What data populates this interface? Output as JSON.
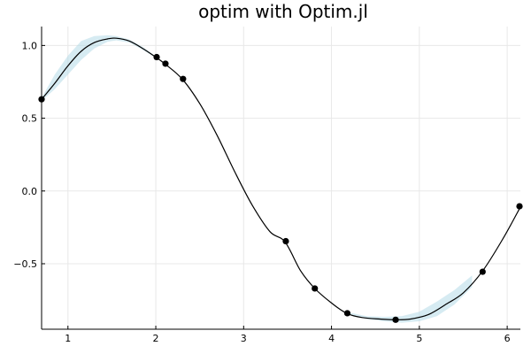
{
  "chart_data": {
    "type": "line",
    "title": "optim with Optim.jl",
    "xlabel": "",
    "ylabel": "",
    "xlim": [
      0.7,
      6.15
    ],
    "ylim": [
      -0.95,
      1.13
    ],
    "grid": true,
    "legend": "none",
    "xticks": [
      1,
      2,
      3,
      4,
      5,
      6
    ],
    "yticks": [
      -0.5,
      0.0,
      0.5,
      1.0
    ],
    "xtick_labels": [
      "1",
      "2",
      "3",
      "4",
      "5",
      "6"
    ],
    "ytick_labels": [
      "−0.5",
      "0.0",
      "0.5",
      "1.0"
    ],
    "colors": {
      "line": "#000000",
      "points": "#000000",
      "ribbon": "#add8e6",
      "grid": "#e8e8e8"
    },
    "series": [
      {
        "type": "line",
        "x": [
          0.7,
          0.85,
          1.0,
          1.15,
          1.3,
          1.45,
          1.55,
          1.7,
          1.85,
          2.0,
          2.1,
          2.3,
          2.5,
          2.7,
          2.9,
          3.1,
          3.3,
          3.47,
          3.65,
          3.81,
          4.0,
          4.17,
          4.35,
          4.55,
          4.73,
          4.9,
          5.1,
          5.3,
          5.5,
          5.72,
          5.95,
          6.15
        ],
        "values": [
          0.63,
          0.74,
          0.86,
          0.96,
          1.02,
          1.045,
          1.05,
          1.03,
          0.98,
          0.92,
          0.875,
          0.77,
          0.6,
          0.38,
          0.13,
          -0.1,
          -0.28,
          -0.35,
          -0.55,
          -0.67,
          -0.77,
          -0.84,
          -0.87,
          -0.88,
          -0.885,
          -0.88,
          -0.85,
          -0.78,
          -0.7,
          -0.55,
          -0.33,
          -0.11
        ]
      },
      {
        "type": "scatter",
        "x": [
          0.7,
          2.01,
          2.11,
          2.31,
          3.48,
          3.81,
          4.18,
          4.73,
          5.72,
          6.14
        ],
        "values": [
          0.63,
          0.92,
          0.875,
          0.77,
          -0.345,
          -0.67,
          -0.84,
          -0.885,
          -0.555,
          -0.105
        ]
      }
    ],
    "ribbon": {
      "x": [
        0.7,
        0.85,
        1.0,
        1.15,
        1.3,
        1.45,
        1.55,
        1.7,
        1.85,
        2.0,
        4.2,
        4.4,
        4.6,
        4.8,
        5.0,
        5.2,
        5.4,
        5.6
      ],
      "upper": [
        0.64,
        0.8,
        0.93,
        1.03,
        1.065,
        1.07,
        1.065,
        1.04,
        0.99,
        0.925,
        -0.835,
        -0.86,
        -0.865,
        -0.86,
        -0.83,
        -0.76,
        -0.68,
        -0.58
      ],
      "lower": [
        0.62,
        0.7,
        0.8,
        0.9,
        0.98,
        1.025,
        1.035,
        1.02,
        0.97,
        0.915,
        -0.845,
        -0.88,
        -0.895,
        -0.905,
        -0.895,
        -0.86,
        -0.78,
        -0.66
      ]
    }
  }
}
